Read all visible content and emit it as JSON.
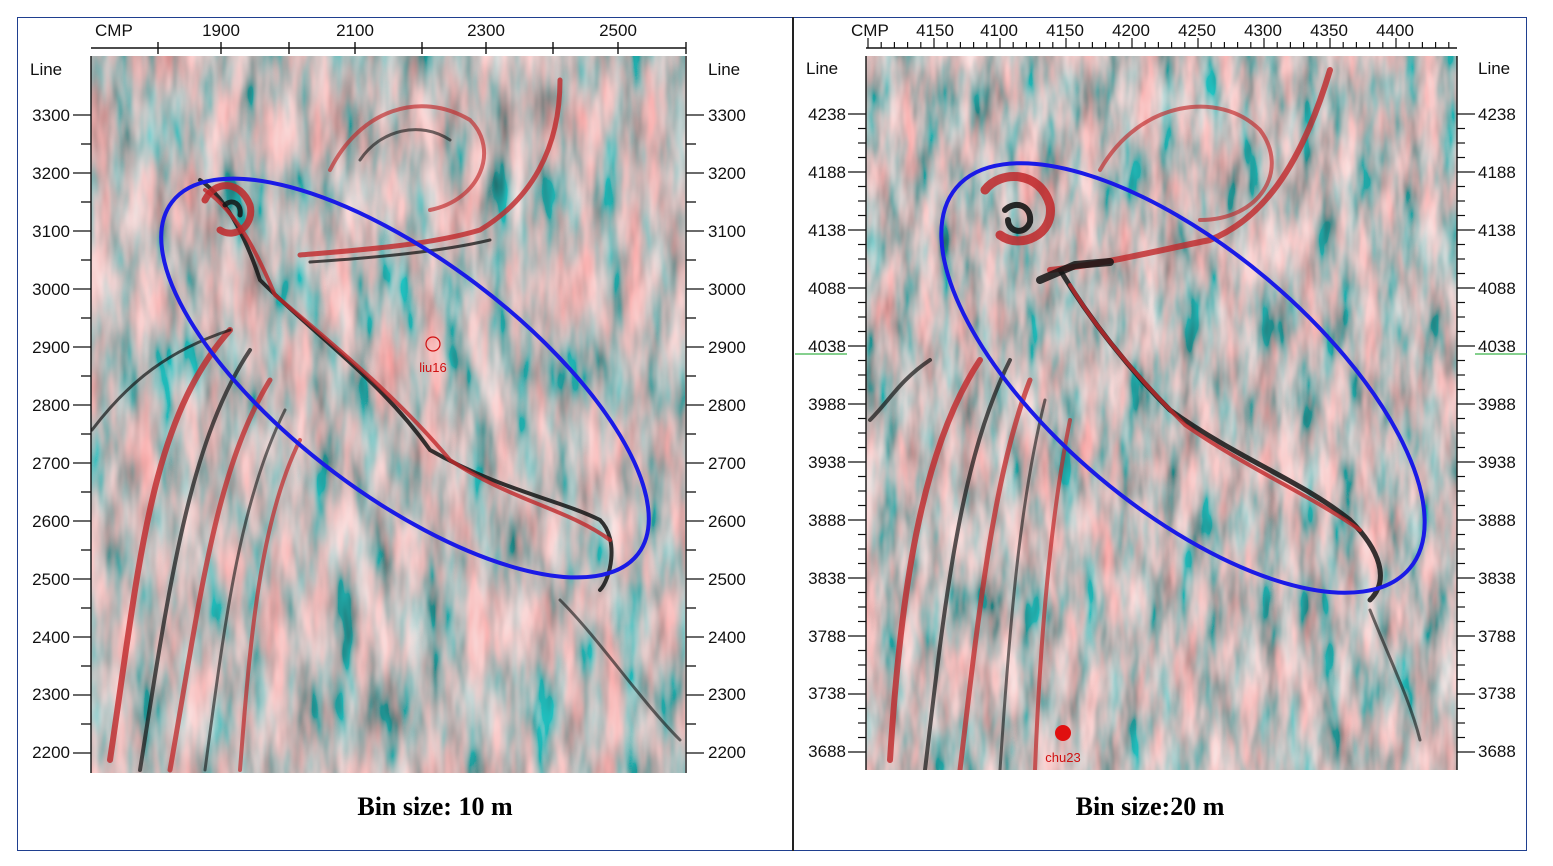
{
  "panels": [
    {
      "id": "left",
      "cmp_label": "CMP",
      "line_label": "Line",
      "cmp_ticks": [
        "1900",
        "2100",
        "2300",
        "2500"
      ],
      "line_ticks": [
        "3300",
        "3200",
        "3100",
        "3000",
        "2900",
        "2800",
        "2700",
        "2600",
        "2500",
        "2400",
        "2300",
        "2200"
      ],
      "well_label": "liu16",
      "caption": "Bin size: 10 m",
      "ellipse_color": "#1a1ae6"
    },
    {
      "id": "right",
      "cmp_label": "CMP",
      "line_label": "Line",
      "cmp_ticks": [
        "4150",
        "4100",
        "4150",
        "4200",
        "4250",
        "4300",
        "4350",
        "4400"
      ],
      "line_ticks": [
        "4238",
        "4188",
        "4138",
        "4088",
        "4038",
        "3988",
        "3938",
        "3888",
        "3838",
        "3788",
        "3738",
        "3688"
      ],
      "well_label": "chu23",
      "caption": "Bin size:20 m",
      "ellipse_color": "#1a1ae6"
    }
  ],
  "colors": {
    "seismic_red": "#c0282a",
    "seismic_black": "#151515",
    "seismic_white": "#eef2ef",
    "seismic_gray": "#9aa4a6",
    "frame": "#1f3f8f"
  }
}
